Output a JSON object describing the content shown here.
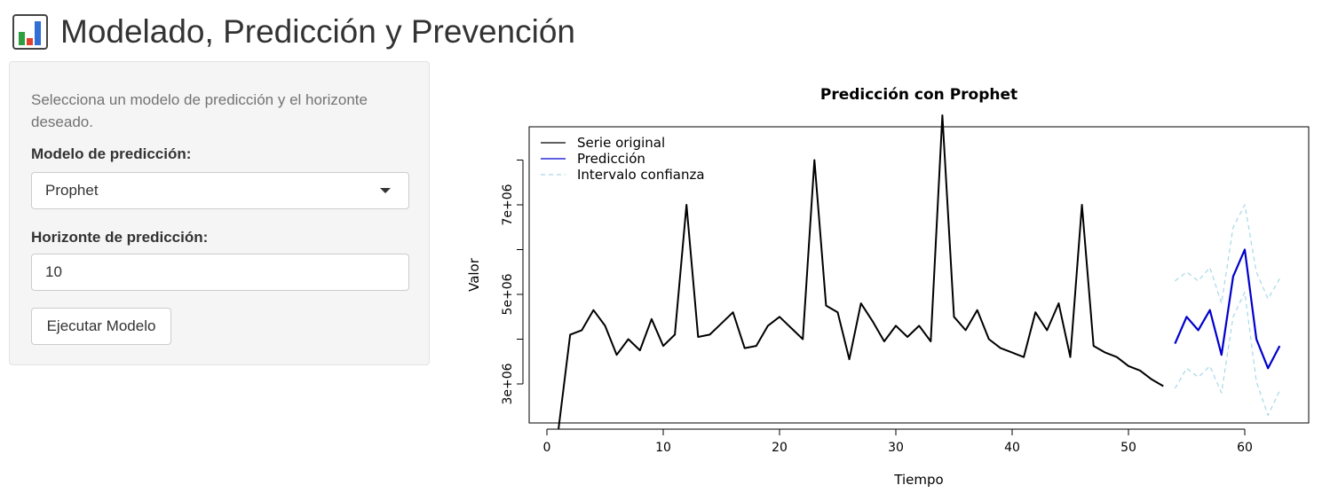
{
  "header": {
    "title": "Modelado, Predicción y Prevención",
    "icon": "bar-chart-icon"
  },
  "sidebar": {
    "help_text": "Selecciona un modelo de predicción y el horizonte deseado.",
    "model_label": "Modelo de predicción:",
    "model_value": "Prophet",
    "horizon_label": "Horizonte de predicción:",
    "horizon_value": "10",
    "run_button": "Ejecutar Modelo"
  },
  "colors": {
    "original": "#000000",
    "prediction": "#0000cd",
    "interval": "#a6d8e6"
  },
  "chart_data": {
    "type": "line",
    "title": "Predicción con Prophet",
    "xlabel": "Tiempo",
    "ylabel": "Valor",
    "xlim": [
      0,
      65
    ],
    "ylim": [
      2300000,
      8800000
    ],
    "xticks": [
      0,
      10,
      20,
      30,
      40,
      50,
      60
    ],
    "yticks": [
      3000000,
      5000000,
      7000000
    ],
    "ytick_labels": [
      "3e+06",
      "5e+06",
      "7e+06"
    ],
    "legend": {
      "position": "top-left",
      "entries": [
        "Serie original",
        "Predicción",
        "Intervalo confianza"
      ]
    },
    "series": [
      {
        "name": "Serie original",
        "x": [
          1,
          2,
          3,
          4,
          5,
          6,
          7,
          8,
          9,
          10,
          11,
          12,
          13,
          14,
          15,
          16,
          17,
          18,
          19,
          20,
          21,
          22,
          23,
          24,
          25,
          26,
          27,
          28,
          29,
          30,
          31,
          32,
          33,
          34,
          35,
          36,
          37,
          38,
          39,
          40,
          41,
          42,
          43,
          44,
          45,
          46,
          47,
          48,
          49,
          50,
          51,
          52,
          53
        ],
        "y": [
          2000000,
          4100000,
          4200000,
          4650000,
          4300000,
          3650000,
          4000000,
          3750000,
          4450000,
          3850000,
          4100000,
          7000000,
          4050000,
          4100000,
          4350000,
          4600000,
          3800000,
          3850000,
          4300000,
          4500000,
          4250000,
          4000000,
          8000000,
          4750000,
          4600000,
          3550000,
          4800000,
          4400000,
          3950000,
          4300000,
          4050000,
          4300000,
          3950000,
          9000000,
          4500000,
          4200000,
          4650000,
          4000000,
          3800000,
          3700000,
          3600000,
          4600000,
          4200000,
          4800000,
          3600000,
          7000000,
          3850000,
          3700000,
          3600000,
          3400000,
          3300000,
          3100000,
          2950000
        ]
      },
      {
        "name": "Predicción",
        "x": [
          54,
          55,
          56,
          57,
          58,
          59,
          60,
          61,
          62,
          63
        ],
        "y": [
          3900000,
          4500000,
          4200000,
          4650000,
          3650000,
          5400000,
          6000000,
          4000000,
          3350000,
          3850000
        ]
      },
      {
        "name": "Intervalo confianza",
        "x": [
          54,
          55,
          56,
          57,
          58,
          59,
          60,
          61,
          62,
          63
        ],
        "y": [
          5300000,
          5500000,
          5300000,
          5600000,
          4800000,
          6500000,
          7000000,
          5500000,
          4900000,
          5350000
        ]
      },
      {
        "name": "Intervalo confianza",
        "x": [
          54,
          55,
          56,
          57,
          58,
          59,
          60,
          61,
          62,
          63
        ],
        "y": [
          2900000,
          3350000,
          3150000,
          3400000,
          2800000,
          4500000,
          5050000,
          3050000,
          2300000,
          2850000
        ]
      }
    ]
  }
}
